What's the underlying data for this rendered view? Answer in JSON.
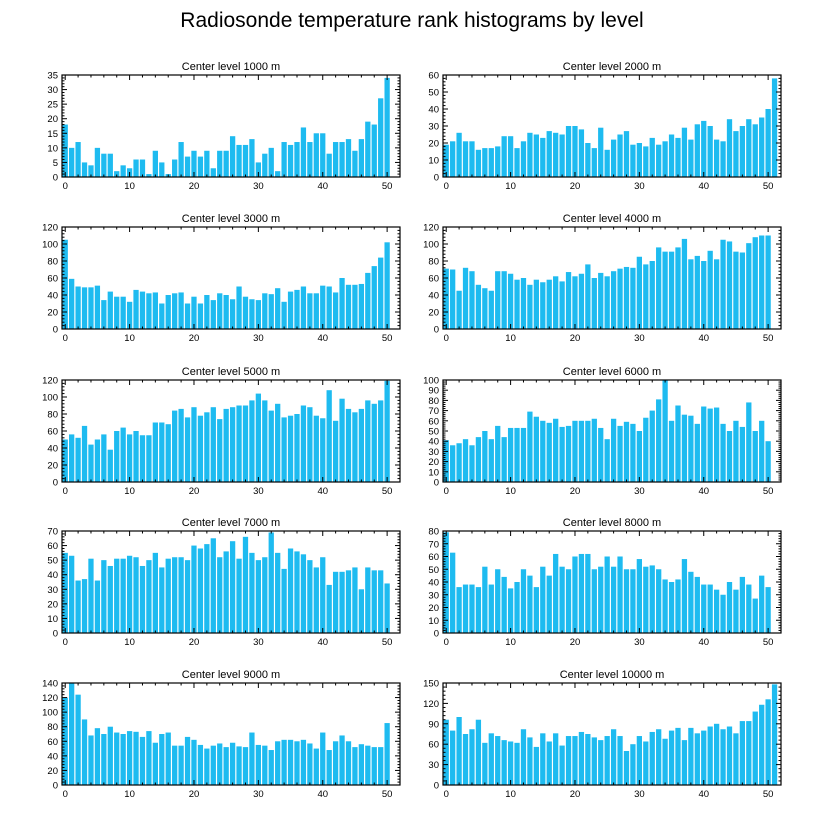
{
  "title": "Radiosonde temperature rank histograms by level",
  "colors": {
    "bar": "#1EBBF0",
    "axis": "#000000",
    "background": "#ffffff"
  },
  "chart_data": [
    {
      "type": "bar",
      "title": "Center level 1000 m",
      "xlim": [
        -0.5,
        52
      ],
      "ylim": [
        0,
        35
      ],
      "xticks": [
        0,
        10,
        20,
        30,
        40,
        50
      ],
      "yticks": [
        0,
        5,
        10,
        15,
        20,
        25,
        30,
        35
      ],
      "x": [
        0,
        1,
        2,
        3,
        4,
        5,
        6,
        7,
        8,
        9,
        10,
        11,
        12,
        13,
        14,
        15,
        16,
        17,
        18,
        19,
        20,
        21,
        22,
        23,
        24,
        25,
        26,
        27,
        28,
        29,
        30,
        31,
        32,
        33,
        34,
        35,
        36,
        37,
        38,
        39,
        40,
        41,
        42,
        43,
        44,
        45,
        46,
        47,
        48,
        49,
        50,
        51
      ],
      "values": [
        18,
        10,
        12,
        5,
        4,
        10,
        8,
        8,
        2,
        4,
        3,
        6,
        6,
        1,
        9,
        5,
        1,
        6,
        12,
        7,
        9,
        7,
        9,
        3,
        9,
        9,
        14,
        11,
        11,
        13,
        5,
        8,
        10,
        2,
        12,
        11,
        12,
        17,
        12,
        15,
        15,
        8,
        12,
        12,
        13,
        9,
        13,
        19,
        18,
        27,
        34,
        0
      ]
    },
    {
      "type": "bar",
      "title": "Center level 2000 m",
      "xlim": [
        -0.5,
        52
      ],
      "ylim": [
        0,
        60
      ],
      "xticks": [
        0,
        10,
        20,
        30,
        40,
        50
      ],
      "yticks": [
        0,
        10,
        20,
        30,
        40,
        50,
        60
      ],
      "x": [
        0,
        1,
        2,
        3,
        4,
        5,
        6,
        7,
        8,
        9,
        10,
        11,
        12,
        13,
        14,
        15,
        16,
        17,
        18,
        19,
        20,
        21,
        22,
        23,
        24,
        25,
        26,
        27,
        28,
        29,
        30,
        31,
        32,
        33,
        34,
        35,
        36,
        37,
        38,
        39,
        40,
        41,
        42,
        43,
        44,
        45,
        46,
        47,
        48,
        49,
        50,
        51
      ],
      "values": [
        19,
        21,
        26,
        21,
        21,
        16,
        17,
        17,
        18,
        24,
        24,
        17,
        21,
        26,
        25,
        23,
        27,
        26,
        25,
        30,
        30,
        28,
        20,
        17,
        29,
        16,
        22,
        25,
        27,
        19,
        20,
        18,
        23,
        19,
        21,
        25,
        23,
        29,
        22,
        31,
        33,
        30,
        22,
        21,
        34,
        27,
        30,
        34,
        31,
        35,
        40,
        58
      ]
    },
    {
      "type": "bar",
      "title": "Center level 3000 m",
      "xlim": [
        -0.5,
        52
      ],
      "ylim": [
        0,
        120
      ],
      "xticks": [
        0,
        10,
        20,
        30,
        40,
        50
      ],
      "yticks": [
        0,
        20,
        40,
        60,
        80,
        100,
        120
      ],
      "x": [
        0,
        1,
        2,
        3,
        4,
        5,
        6,
        7,
        8,
        9,
        10,
        11,
        12,
        13,
        14,
        15,
        16,
        17,
        18,
        19,
        20,
        21,
        22,
        23,
        24,
        25,
        26,
        27,
        28,
        29,
        30,
        31,
        32,
        33,
        34,
        35,
        36,
        37,
        38,
        39,
        40,
        41,
        42,
        43,
        44,
        45,
        46,
        47,
        48,
        49,
        50,
        51
      ],
      "values": [
        105,
        59,
        50,
        49,
        49,
        51,
        34,
        44,
        38,
        38,
        32,
        46,
        44,
        42,
        43,
        30,
        40,
        42,
        43,
        30,
        38,
        30,
        40,
        34,
        42,
        40,
        35,
        50,
        38,
        35,
        34,
        42,
        41,
        48,
        32,
        44,
        46,
        50,
        42,
        42,
        51,
        50,
        43,
        60,
        52,
        52,
        53,
        66,
        74,
        84,
        102,
        0
      ]
    },
    {
      "type": "bar",
      "title": "Center level 4000 m",
      "xlim": [
        -0.5,
        52
      ],
      "ylim": [
        0,
        120
      ],
      "xticks": [
        0,
        10,
        20,
        30,
        40,
        50
      ],
      "yticks": [
        0,
        20,
        40,
        60,
        80,
        100,
        120
      ],
      "x": [
        0,
        1,
        2,
        3,
        4,
        5,
        6,
        7,
        8,
        9,
        10,
        11,
        12,
        13,
        14,
        15,
        16,
        17,
        18,
        19,
        20,
        21,
        22,
        23,
        24,
        25,
        26,
        27,
        28,
        29,
        30,
        31,
        32,
        33,
        34,
        35,
        36,
        37,
        38,
        39,
        40,
        41,
        42,
        43,
        44,
        45,
        46,
        47,
        48,
        49,
        50,
        51
      ],
      "values": [
        71,
        70,
        45,
        72,
        68,
        52,
        48,
        45,
        68,
        68,
        65,
        58,
        60,
        52,
        58,
        55,
        58,
        62,
        56,
        67,
        62,
        65,
        76,
        60,
        66,
        62,
        68,
        71,
        73,
        72,
        85,
        76,
        80,
        96,
        91,
        91,
        96,
        106,
        82,
        86,
        80,
        92,
        82,
        105,
        103,
        91,
        90,
        101,
        108,
        110,
        110,
        0
      ]
    },
    {
      "type": "bar",
      "title": "Center level 5000 m",
      "xlim": [
        -0.5,
        52
      ],
      "ylim": [
        0,
        120
      ],
      "xticks": [
        0,
        10,
        20,
        30,
        40,
        50
      ],
      "yticks": [
        0,
        20,
        40,
        60,
        80,
        100,
        120
      ],
      "x": [
        0,
        1,
        2,
        3,
        4,
        5,
        6,
        7,
        8,
        9,
        10,
        11,
        12,
        13,
        14,
        15,
        16,
        17,
        18,
        19,
        20,
        21,
        22,
        23,
        24,
        25,
        26,
        27,
        28,
        29,
        30,
        31,
        32,
        33,
        34,
        35,
        36,
        37,
        38,
        39,
        40,
        41,
        42,
        43,
        44,
        45,
        46,
        47,
        48,
        49,
        50,
        51
      ],
      "values": [
        50,
        56,
        52,
        66,
        44,
        50,
        56,
        38,
        60,
        64,
        56,
        60,
        55,
        55,
        70,
        70,
        68,
        84,
        86,
        76,
        88,
        78,
        82,
        88,
        74,
        86,
        88,
        90,
        90,
        96,
        104,
        96,
        84,
        92,
        76,
        78,
        80,
        90,
        88,
        78,
        75,
        108,
        72,
        98,
        86,
        82,
        86,
        96,
        92,
        96,
        119,
        0
      ]
    },
    {
      "type": "bar",
      "title": "Center level 6000 m",
      "xlim": [
        -0.5,
        52
      ],
      "ylim": [
        0,
        100
      ],
      "xticks": [
        0,
        10,
        20,
        30,
        40,
        50
      ],
      "yticks": [
        0,
        10,
        20,
        30,
        40,
        50,
        60,
        70,
        80,
        90,
        100
      ],
      "x": [
        0,
        1,
        2,
        3,
        4,
        5,
        6,
        7,
        8,
        9,
        10,
        11,
        12,
        13,
        14,
        15,
        16,
        17,
        18,
        19,
        20,
        21,
        22,
        23,
        24,
        25,
        26,
        27,
        28,
        29,
        30,
        31,
        32,
        33,
        34,
        35,
        36,
        37,
        38,
        39,
        40,
        41,
        42,
        43,
        44,
        45,
        46,
        47,
        48,
        49,
        50,
        51
      ],
      "values": [
        41,
        36,
        38,
        42,
        36,
        44,
        50,
        42,
        55,
        44,
        53,
        53,
        53,
        69,
        64,
        60,
        58,
        62,
        54,
        55,
        60,
        60,
        60,
        62,
        53,
        42,
        62,
        55,
        59,
        57,
        50,
        63,
        70,
        81,
        100,
        60,
        75,
        66,
        65,
        57,
        74,
        72,
        73,
        57,
        50,
        60,
        54,
        78,
        50,
        60,
        40,
        0
      ]
    },
    {
      "type": "bar",
      "title": "Center level 7000 m",
      "xlim": [
        -0.5,
        52
      ],
      "ylim": [
        0,
        70
      ],
      "xticks": [
        0,
        10,
        20,
        30,
        40,
        50
      ],
      "yticks": [
        0,
        10,
        20,
        30,
        40,
        50,
        60,
        70
      ],
      "x": [
        0,
        1,
        2,
        3,
        4,
        5,
        6,
        7,
        8,
        9,
        10,
        11,
        12,
        13,
        14,
        15,
        16,
        17,
        18,
        19,
        20,
        21,
        22,
        23,
        24,
        25,
        26,
        27,
        28,
        29,
        30,
        31,
        32,
        33,
        34,
        35,
        36,
        37,
        38,
        39,
        40,
        41,
        42,
        43,
        44,
        45,
        46,
        47,
        48,
        49,
        50,
        51
      ],
      "values": [
        55,
        53,
        36,
        37,
        51,
        36,
        50,
        46,
        51,
        51,
        53,
        52,
        46,
        50,
        55,
        45,
        51,
        52,
        52,
        50,
        60,
        58,
        61,
        65,
        52,
        56,
        63,
        51,
        66,
        55,
        50,
        52,
        69,
        55,
        44,
        58,
        56,
        54,
        50,
        45,
        52,
        33,
        42,
        42,
        43,
        45,
        30,
        45,
        43,
        43,
        34,
        0
      ]
    },
    {
      "type": "bar",
      "title": "Center level 8000 m",
      "xlim": [
        -0.5,
        52
      ],
      "ylim": [
        0,
        80
      ],
      "xticks": [
        0,
        10,
        20,
        30,
        40,
        50
      ],
      "yticks": [
        0,
        10,
        20,
        30,
        40,
        50,
        60,
        70,
        80
      ],
      "x": [
        0,
        1,
        2,
        3,
        4,
        5,
        6,
        7,
        8,
        9,
        10,
        11,
        12,
        13,
        14,
        15,
        16,
        17,
        18,
        19,
        20,
        21,
        22,
        23,
        24,
        25,
        26,
        27,
        28,
        29,
        30,
        31,
        32,
        33,
        34,
        35,
        36,
        37,
        38,
        39,
        40,
        41,
        42,
        43,
        44,
        45,
        46,
        47,
        48,
        49,
        50,
        51
      ],
      "values": [
        79,
        63,
        36,
        38,
        38,
        36,
        52,
        38,
        50,
        44,
        35,
        40,
        50,
        45,
        36,
        52,
        45,
        62,
        52,
        50,
        60,
        62,
        62,
        50,
        52,
        60,
        52,
        60,
        50,
        50,
        58,
        52,
        53,
        50,
        42,
        40,
        42,
        58,
        48,
        44,
        38,
        38,
        34,
        30,
        40,
        34,
        44,
        38,
        27,
        45,
        36,
        0
      ]
    },
    {
      "type": "bar",
      "title": "Center level 9000 m",
      "xlim": [
        -0.5,
        52
      ],
      "ylim": [
        0,
        140
      ],
      "xticks": [
        0,
        10,
        20,
        30,
        40,
        50
      ],
      "yticks": [
        0,
        20,
        40,
        60,
        80,
        100,
        120,
        140
      ],
      "x": [
        0,
        1,
        2,
        3,
        4,
        5,
        6,
        7,
        8,
        9,
        10,
        11,
        12,
        13,
        14,
        15,
        16,
        17,
        18,
        19,
        20,
        21,
        22,
        23,
        24,
        25,
        26,
        27,
        28,
        29,
        30,
        31,
        32,
        33,
        34,
        35,
        36,
        37,
        38,
        39,
        40,
        41,
        42,
        43,
        44,
        45,
        46,
        47,
        48,
        49,
        50,
        51
      ],
      "values": [
        120,
        140,
        124,
        90,
        68,
        78,
        70,
        80,
        72,
        70,
        74,
        73,
        66,
        74,
        58,
        70,
        72,
        54,
        54,
        66,
        62,
        55,
        50,
        54,
        57,
        52,
        58,
        53,
        52,
        72,
        55,
        54,
        48,
        60,
        62,
        62,
        60,
        62,
        57,
        50,
        72,
        48,
        60,
        68,
        60,
        52,
        56,
        54,
        52,
        52,
        85,
        0
      ]
    },
    {
      "type": "bar",
      "title": "Center level 10000 m",
      "xlim": [
        -0.5,
        52
      ],
      "ylim": [
        0,
        150
      ],
      "xticks": [
        0,
        10,
        20,
        30,
        40,
        50
      ],
      "yticks": [
        0,
        30,
        60,
        90,
        120,
        150
      ],
      "x": [
        0,
        1,
        2,
        3,
        4,
        5,
        6,
        7,
        8,
        9,
        10,
        11,
        12,
        13,
        14,
        15,
        16,
        17,
        18,
        19,
        20,
        21,
        22,
        23,
        24,
        25,
        26,
        27,
        28,
        29,
        30,
        31,
        32,
        33,
        34,
        35,
        36,
        37,
        38,
        39,
        40,
        41,
        42,
        43,
        44,
        45,
        46,
        47,
        48,
        49,
        50,
        51
      ],
      "values": [
        96,
        80,
        100,
        75,
        82,
        96,
        62,
        76,
        72,
        66,
        64,
        62,
        82,
        70,
        56,
        76,
        64,
        76,
        58,
        72,
        72,
        78,
        75,
        70,
        66,
        72,
        82,
        72,
        50,
        60,
        72,
        64,
        78,
        82,
        68,
        80,
        84,
        66,
        84,
        76,
        80,
        86,
        90,
        82,
        86,
        76,
        94,
        94,
        108,
        118,
        126,
        148
      ]
    }
  ]
}
